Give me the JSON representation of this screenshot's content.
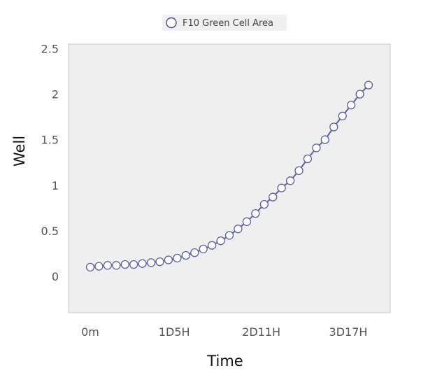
{
  "chart_data": {
    "type": "line",
    "xlabel": "Time",
    "ylabel": "Well",
    "x_tick_labels": [
      "0m",
      "1D5H",
      "2D11H",
      "3D17H"
    ],
    "x_tick_hours": [
      0,
      29,
      59,
      89
    ],
    "ylim": [
      -0.4,
      2.55
    ],
    "y_ticks": [
      0,
      0.5,
      1,
      1.5,
      2,
      2.5
    ],
    "y_tick_labels": [
      "0",
      "0.5",
      "1",
      "1.5",
      "2",
      "2.5"
    ],
    "grid": false,
    "legend_position": "top-center",
    "series": [
      {
        "name": "F10 Green Cell Area",
        "color": "#5c5fa8",
        "marker": "open-circle",
        "x_hours": [
          0,
          3,
          6,
          9,
          12,
          15,
          18,
          21,
          24,
          27,
          30,
          33,
          36,
          39,
          42,
          45,
          48,
          51,
          54,
          57,
          60,
          63,
          66,
          69,
          72,
          75,
          78,
          81,
          84,
          87,
          90,
          93,
          96
        ],
        "values": [
          0.1,
          0.11,
          0.12,
          0.12,
          0.13,
          0.13,
          0.14,
          0.15,
          0.16,
          0.18,
          0.2,
          0.23,
          0.26,
          0.3,
          0.34,
          0.39,
          0.45,
          0.52,
          0.6,
          0.69,
          0.79,
          0.87,
          0.97,
          1.05,
          1.16,
          1.29,
          1.41,
          1.5,
          1.64,
          1.76,
          1.88,
          2.0,
          2.1
        ]
      }
    ]
  }
}
